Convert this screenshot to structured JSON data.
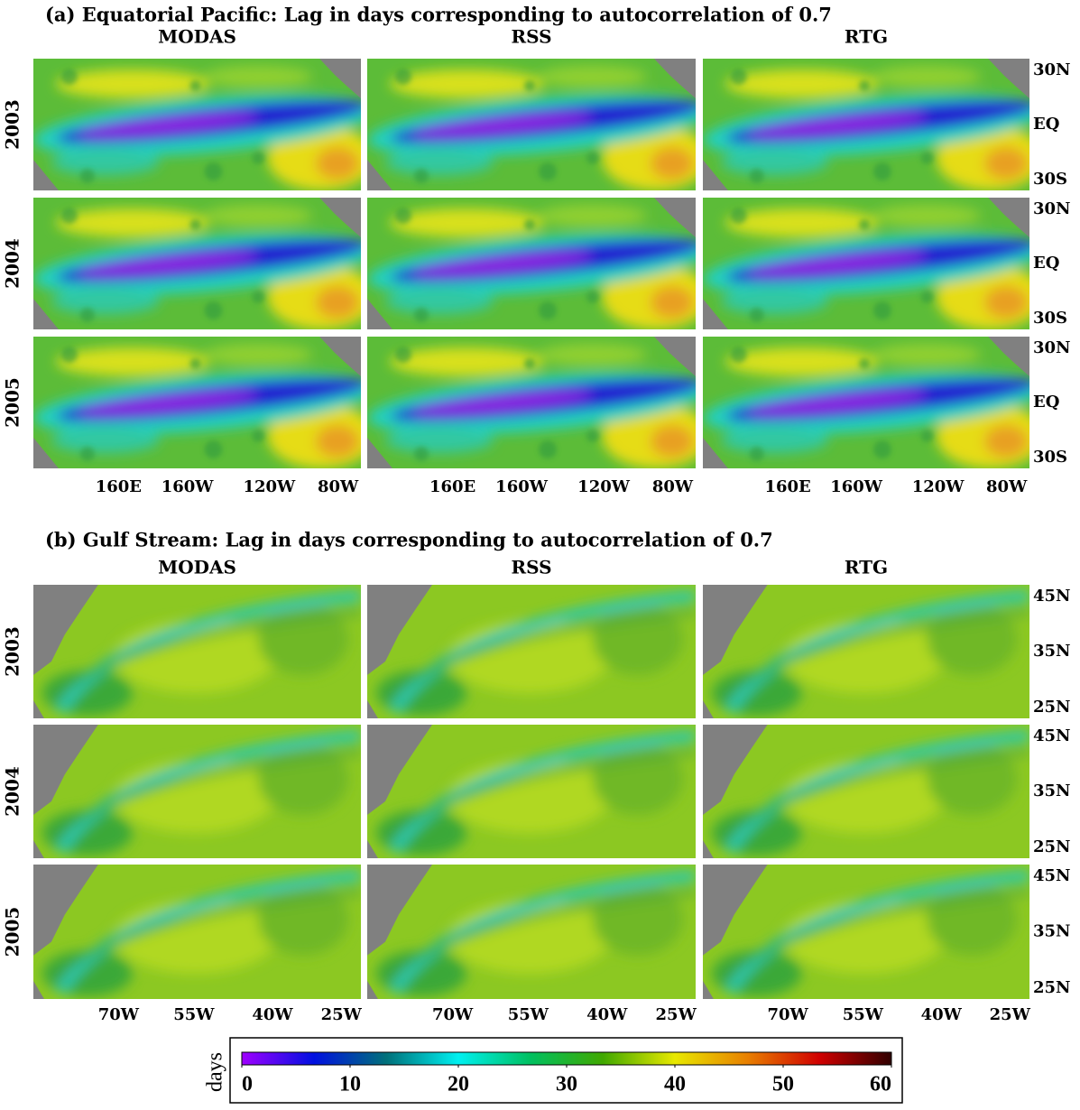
{
  "panels": [
    {
      "title": "(a) Equatorial Pacific: Lag in days corresponding to autocorrelation of 0.7",
      "columns": [
        "MODAS",
        "RSS",
        "RTG"
      ],
      "rows": [
        "2003",
        "2004",
        "2005"
      ],
      "x_labels": [
        "160E",
        "160W",
        "120W",
        "80W"
      ],
      "y_labels": [
        "30N",
        "EQ",
        "30S"
      ]
    },
    {
      "title": "(b) Gulf Stream: Lag in days corresponding to autocorrelation of 0.7",
      "columns": [
        "MODAS",
        "RSS",
        "RTG"
      ],
      "rows": [
        "2003",
        "2004",
        "2005"
      ],
      "x_labels": [
        "70W",
        "55W",
        "40W",
        "25W"
      ],
      "y_labels": [
        "45N",
        "35N",
        "25N"
      ]
    }
  ],
  "colorbar": {
    "label": "days",
    "lim": [
      0,
      60
    ],
    "ticks": [
      0,
      10,
      20,
      30,
      40,
      50,
      60
    ],
    "colors": [
      "#a000ff",
      "#0010e0",
      "#00707a",
      "#00f0f0",
      "#00c060",
      "#40a800",
      "#e8e800",
      "#e88000",
      "#d00000",
      "#300000"
    ]
  }
}
